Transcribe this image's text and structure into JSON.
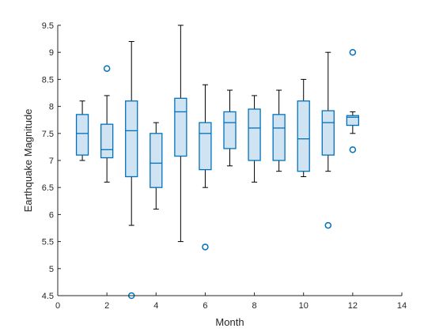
{
  "chart_data": {
    "type": "boxplot",
    "xlabel": "Month",
    "ylabel": "Earthquake Magnitude",
    "xlim": [
      0,
      14
    ],
    "ylim": [
      4.5,
      9.5
    ],
    "xticks": [
      0,
      2,
      4,
      6,
      8,
      10,
      12,
      14
    ],
    "yticks": [
      4.5,
      5,
      5.5,
      6,
      6.5,
      7,
      7.5,
      8,
      8.5,
      9,
      9.5
    ],
    "grid": false,
    "colors": {
      "box_edge": "#0072BD",
      "box_fill": "#CFE3F2",
      "whisker": "#000000",
      "outlier": "#0072BD"
    },
    "boxes": [
      {
        "x": 1,
        "whisker_low": 7.0,
        "q1": 7.1,
        "median": 7.5,
        "q3": 7.85,
        "whisker_high": 8.1,
        "outliers": []
      },
      {
        "x": 2,
        "whisker_low": 6.6,
        "q1": 7.05,
        "median": 7.2,
        "q3": 7.67,
        "whisker_high": 8.2,
        "outliers": [
          8.7
        ]
      },
      {
        "x": 3,
        "whisker_low": 5.8,
        "q1": 6.7,
        "median": 7.55,
        "q3": 8.1,
        "whisker_high": 9.2,
        "outliers": [
          4.5
        ]
      },
      {
        "x": 4,
        "whisker_low": 6.1,
        "q1": 6.5,
        "median": 6.95,
        "q3": 7.5,
        "whisker_high": 7.7,
        "outliers": []
      },
      {
        "x": 5,
        "whisker_low": 5.5,
        "q1": 7.08,
        "median": 7.9,
        "q3": 8.15,
        "whisker_high": 9.5,
        "outliers": []
      },
      {
        "x": 6,
        "whisker_low": 6.5,
        "q1": 6.83,
        "median": 7.5,
        "q3": 7.7,
        "whisker_high": 8.4,
        "outliers": [
          5.4
        ]
      },
      {
        "x": 7,
        "whisker_low": 6.9,
        "q1": 7.22,
        "median": 7.7,
        "q3": 7.9,
        "whisker_high": 8.3,
        "outliers": []
      },
      {
        "x": 8,
        "whisker_low": 6.6,
        "q1": 7.0,
        "median": 7.6,
        "q3": 7.95,
        "whisker_high": 8.2,
        "outliers": []
      },
      {
        "x": 9,
        "whisker_low": 6.8,
        "q1": 7.0,
        "median": 7.6,
        "q3": 7.85,
        "whisker_high": 8.3,
        "outliers": []
      },
      {
        "x": 10,
        "whisker_low": 6.7,
        "q1": 6.8,
        "median": 7.4,
        "q3": 8.1,
        "whisker_high": 8.5,
        "outliers": []
      },
      {
        "x": 11,
        "whisker_low": 6.8,
        "q1": 7.1,
        "median": 7.7,
        "q3": 7.92,
        "whisker_high": 9.0,
        "outliers": [
          5.8
        ]
      },
      {
        "x": 12,
        "whisker_low": 7.5,
        "q1": 7.65,
        "median": 7.8,
        "q3": 7.83,
        "whisker_high": 7.9,
        "outliers": [
          9.0,
          7.2
        ]
      }
    ]
  }
}
